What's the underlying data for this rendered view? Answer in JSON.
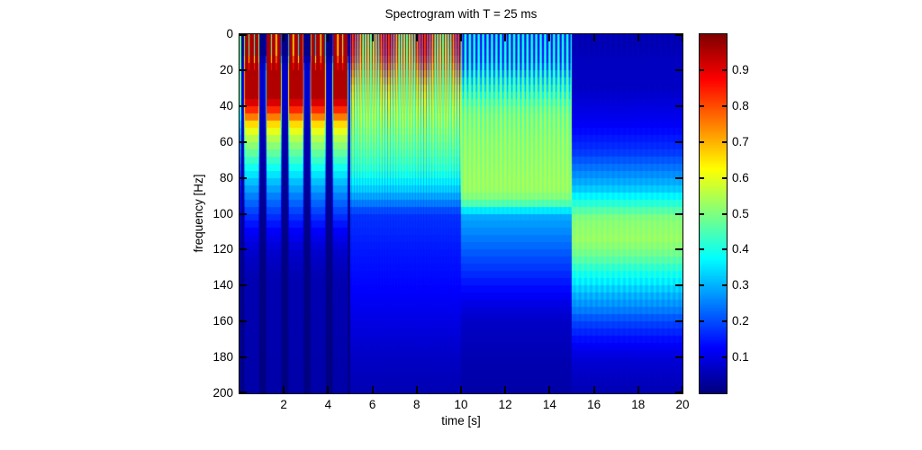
{
  "figure": {
    "title": "Spectrogram with T = 25 ms",
    "background_color": "#ffffff",
    "axis_color": "#000000"
  },
  "axes": {
    "xlabel": "time [s]",
    "ylabel": "frequency [Hz]",
    "x_ticks": [
      2,
      4,
      6,
      8,
      10,
      12,
      14,
      16,
      18,
      20
    ],
    "y_ticks": [
      0,
      20,
      40,
      60,
      80,
      100,
      120,
      140,
      160,
      180,
      200
    ],
    "x_range": [
      0,
      20
    ],
    "y_range": [
      0,
      200
    ],
    "y_axis_reversed": true
  },
  "colorbar": {
    "ticks": [
      0.1,
      0.2,
      0.3,
      0.4,
      0.5,
      0.6,
      0.7,
      0.8,
      0.9
    ],
    "value_range": [
      0,
      1
    ],
    "colormap": "jet",
    "top_color": "#800000",
    "bottom_color": "#000080"
  },
  "chart_data": {
    "type": "heatmap",
    "title": "Spectrogram with T = 25 ms",
    "xlabel": "time [s]",
    "ylabel": "frequency [Hz]",
    "x_range": [
      0,
      20
    ],
    "y_range": [
      0,
      200
    ],
    "y_axis_reversed": true,
    "value_range": [
      0,
      1
    ],
    "colormap": "jet",
    "freq_bin_hz": 4,
    "description": "STFT magnitude (window T = 25 ms) of a stepped-tone signal; four 5-second segments with energy moving from low frequencies (0-40 Hz, pulsed, ~1 values) toward a ~100-125 Hz band (~0.5 values) as time increases",
    "edge_column": {
      "t_max": 0.1,
      "scale": 0.5
    },
    "segments": [
      {
        "t_start": 0,
        "t_end": 5,
        "pattern": "pulsed clusters ~1 s apart, 3 sub-bars per cluster, deep red core 0-40 Hz fading to dark blue by 130 Hz",
        "cluster_period": 1.0,
        "cluster_window": [
          0.24,
          0.86
        ],
        "bars": [
          [
            0.24,
            0.4
          ],
          [
            0.47,
            0.63
          ],
          [
            0.7,
            0.86
          ]
        ],
        "envelope": [
          [
            0,
            0.96
          ],
          [
            36,
            0.95
          ],
          [
            44,
            0.8
          ],
          [
            50,
            0.66
          ],
          [
            57,
            0.56
          ],
          [
            65,
            0.48
          ],
          [
            73,
            0.4
          ],
          [
            80,
            0.33
          ],
          [
            90,
            0.25
          ],
          [
            100,
            0.18
          ],
          [
            110,
            0.12
          ],
          [
            120,
            0.08
          ],
          [
            135,
            0.05
          ],
          [
            200,
            0.04
          ]
        ],
        "cluster_depth": [
          [
            0,
            0.92
          ],
          [
            200,
            0.92
          ]
        ],
        "bar_depth": [
          [
            0,
            0.85
          ],
          [
            10,
            0.85
          ],
          [
            20,
            0.0
          ],
          [
            200,
            0.0
          ]
        ]
      },
      {
        "t_start": 5,
        "t_end": 10,
        "pattern": "fine vertical stripes ~0.125 s period; red top, yellow to ~65 Hz, cyan to ~95 Hz, blue below",
        "stripe_period": 0.125,
        "stripe_sharpness": 0.5,
        "envelope": [
          [
            0,
            0.95
          ],
          [
            12,
            0.93
          ],
          [
            20,
            0.82
          ],
          [
            30,
            0.72
          ],
          [
            40,
            0.66
          ],
          [
            48,
            0.62
          ],
          [
            58,
            0.56
          ],
          [
            65,
            0.52
          ],
          [
            75,
            0.46
          ],
          [
            85,
            0.36
          ],
          [
            92,
            0.28
          ],
          [
            100,
            0.18
          ],
          [
            120,
            0.15
          ],
          [
            140,
            0.13
          ],
          [
            160,
            0.1
          ],
          [
            180,
            0.07
          ],
          [
            200,
            0.05
          ]
        ],
        "stripe_depth": [
          [
            0,
            1.0
          ],
          [
            20,
            0.85
          ],
          [
            40,
            0.6
          ],
          [
            60,
            0.38
          ],
          [
            80,
            0.25
          ],
          [
            95,
            0.12
          ],
          [
            110,
            0.05
          ],
          [
            200,
            0.03
          ]
        ]
      },
      {
        "t_start": 10,
        "t_end": 15,
        "pattern": "stripes ~0.2 s period; cyan/dark-blue top, green-yellow block 30-95 Hz, blue gradient below",
        "stripe_period": 0.2,
        "stripe_sharpness": 0.75,
        "envelope": [
          [
            0,
            0.42
          ],
          [
            15,
            0.44
          ],
          [
            25,
            0.48
          ],
          [
            35,
            0.52
          ],
          [
            45,
            0.55
          ],
          [
            85,
            0.55
          ],
          [
            90,
            0.52
          ],
          [
            95,
            0.45
          ],
          [
            100,
            0.3
          ],
          [
            110,
            0.26
          ],
          [
            120,
            0.22
          ],
          [
            130,
            0.18
          ],
          [
            140,
            0.14
          ],
          [
            150,
            0.1
          ],
          [
            160,
            0.07
          ],
          [
            180,
            0.05
          ],
          [
            200,
            0.04
          ]
        ],
        "stripe_depth": [
          [
            0,
            0.85
          ],
          [
            15,
            0.8
          ],
          [
            25,
            0.5
          ],
          [
            40,
            0.25
          ],
          [
            60,
            0.15
          ],
          [
            80,
            0.1
          ],
          [
            95,
            0.05
          ],
          [
            105,
            0.0
          ],
          [
            200,
            0.0
          ]
        ]
      },
      {
        "t_start": 15,
        "t_end": 20,
        "pattern": "nearly uniform; dark navy above 30 Hz region, light-green band ~100-125 Hz, blue below 150 Hz",
        "stripe_period": 0.25,
        "stripe_sharpness": 1,
        "envelope": [
          [
            0,
            0.06
          ],
          [
            30,
            0.07
          ],
          [
            50,
            0.12
          ],
          [
            65,
            0.18
          ],
          [
            75,
            0.25
          ],
          [
            85,
            0.32
          ],
          [
            92,
            0.4
          ],
          [
            98,
            0.47
          ],
          [
            103,
            0.52
          ],
          [
            115,
            0.54
          ],
          [
            122,
            0.5
          ],
          [
            130,
            0.44
          ],
          [
            138,
            0.38
          ],
          [
            145,
            0.32
          ],
          [
            152,
            0.27
          ],
          [
            160,
            0.2
          ],
          [
            170,
            0.14
          ],
          [
            180,
            0.09
          ],
          [
            200,
            0.05
          ]
        ],
        "stripe_depth": [
          [
            0,
            0.3
          ],
          [
            8,
            0.3
          ],
          [
            14,
            0.05
          ],
          [
            128,
            0.05
          ],
          [
            132,
            0.1
          ],
          [
            148,
            0.1
          ],
          [
            154,
            0.05
          ],
          [
            200,
            0.05
          ]
        ]
      }
    ]
  }
}
